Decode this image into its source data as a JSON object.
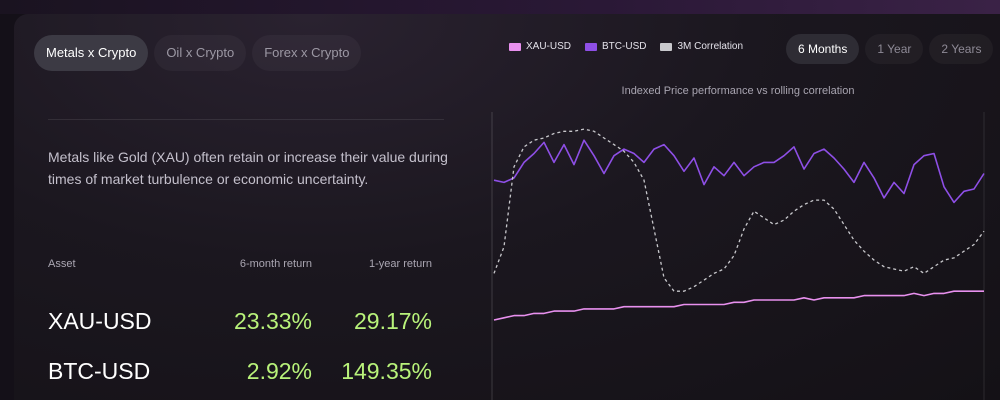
{
  "tabs": [
    {
      "label": "Metals x Crypto",
      "active": true
    },
    {
      "label": "Oil x Crypto",
      "active": false
    },
    {
      "label": "Forex x Crypto",
      "active": false
    }
  ],
  "description": "Metals like Gold (XAU) often retain or increase their value during times of market turbulence or economic uncertainty.",
  "returns_table": {
    "headers": [
      "Asset",
      "6-month return",
      "1-year return"
    ],
    "rows": [
      {
        "asset": "XAU-USD",
        "six_month": "23.33%",
        "one_year": "29.17%"
      },
      {
        "asset": "BTC-USD",
        "six_month": "2.92%",
        "one_year": "149.35%"
      }
    ]
  },
  "periods": [
    {
      "label": "6 Months",
      "active": true
    },
    {
      "label": "1 Year",
      "active": false
    },
    {
      "label": "2 Years",
      "active": false
    }
  ],
  "colors": {
    "xau": "#e890ee",
    "btc": "#8e4fe6",
    "correlation": "#c8c8cc",
    "positive_return": "#b8f27a"
  },
  "chart_data": {
    "type": "line",
    "title": "Indexed Price performance vs rolling correlation",
    "grid": false,
    "legend_position": "top",
    "series": [
      {
        "name": "XAU-USD",
        "style": "solid",
        "values": [
          0.09,
          0.1,
          0.11,
          0.11,
          0.12,
          0.12,
          0.13,
          0.13,
          0.13,
          0.14,
          0.14,
          0.14,
          0.14,
          0.15,
          0.15,
          0.15,
          0.15,
          0.15,
          0.15,
          0.16,
          0.16,
          0.16,
          0.16,
          0.16,
          0.17,
          0.17,
          0.18,
          0.18,
          0.18,
          0.18,
          0.18,
          0.19,
          0.18,
          0.19,
          0.19,
          0.19,
          0.19,
          0.2,
          0.2,
          0.2,
          0.2,
          0.2,
          0.21,
          0.2,
          0.21,
          0.21,
          0.22,
          0.22,
          0.22,
          0.22
        ]
      },
      {
        "name": "BTC-USD",
        "style": "solid",
        "values": [
          0.72,
          0.71,
          0.73,
          0.8,
          0.84,
          0.89,
          0.8,
          0.88,
          0.79,
          0.9,
          0.83,
          0.75,
          0.83,
          0.86,
          0.84,
          0.8,
          0.86,
          0.88,
          0.83,
          0.76,
          0.82,
          0.7,
          0.78,
          0.74,
          0.8,
          0.74,
          0.78,
          0.8,
          0.8,
          0.83,
          0.87,
          0.77,
          0.84,
          0.86,
          0.82,
          0.77,
          0.71,
          0.8,
          0.73,
          0.64,
          0.71,
          0.66,
          0.79,
          0.83,
          0.84,
          0.69,
          0.62,
          0.67,
          0.68,
          0.75
        ]
      },
      {
        "name": "3M Correlation",
        "style": "dashed",
        "values": [
          0.3,
          0.42,
          0.78,
          0.87,
          0.9,
          0.91,
          0.93,
          0.94,
          0.94,
          0.95,
          0.94,
          0.91,
          0.88,
          0.85,
          0.8,
          0.72,
          0.5,
          0.28,
          0.22,
          0.22,
          0.24,
          0.27,
          0.3,
          0.32,
          0.38,
          0.5,
          0.58,
          0.55,
          0.52,
          0.54,
          0.58,
          0.61,
          0.63,
          0.63,
          0.59,
          0.52,
          0.45,
          0.4,
          0.36,
          0.33,
          0.32,
          0.31,
          0.33,
          0.3,
          0.33,
          0.36,
          0.37,
          0.4,
          0.43,
          0.49
        ]
      }
    ]
  }
}
